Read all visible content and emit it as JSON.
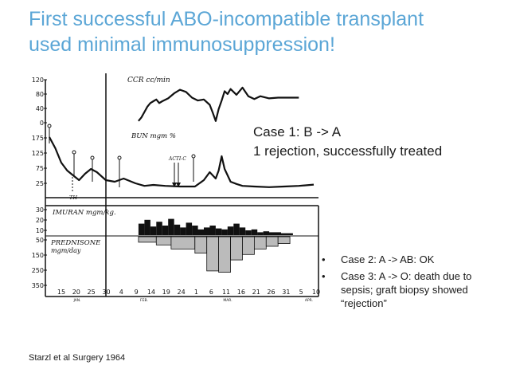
{
  "slide": {
    "title_line1": "First successful ABO-incompatible transplant",
    "title_line2": "used minimal immunosuppression!",
    "case1_line1": "Case 1: B -> A",
    "case1_line2": "1 rejection, successfully treated",
    "bullets": [
      "Case 2: A -> AB: OK",
      "Case 3: A -> O:  death due to sepsis; graft biopsy showed “rejection”"
    ],
    "citation": "Starzl et al Surgery 1964",
    "title_color": "#5ba6d6"
  },
  "chart_data": {
    "type": "line",
    "x_tick_labels": [
      "15",
      "20",
      "25",
      "30",
      "4",
      "9",
      "14",
      "19",
      "24",
      "1",
      "6",
      "11",
      "16",
      "21",
      "26",
      "31",
      "5",
      "10"
    ],
    "month_labels": [
      "JAN.",
      "FEB.",
      "MAR.",
      "APR."
    ],
    "panels": [
      {
        "name": "CCR cc/min",
        "y_tick_labels": [
          "120",
          "80",
          "40",
          "0"
        ],
        "ylim": [
          0,
          120
        ],
        "x": [
          31,
          32,
          33,
          34,
          35,
          36,
          37,
          38,
          39,
          41,
          43,
          45,
          47,
          49,
          51,
          53,
          55,
          56,
          57,
          58,
          59,
          60,
          61,
          62,
          64,
          66,
          68,
          70,
          72,
          75,
          78,
          81,
          85
        ],
        "values": [
          5,
          15,
          30,
          45,
          55,
          60,
          65,
          55,
          60,
          68,
          82,
          92,
          86,
          70,
          62,
          65,
          50,
          28,
          5,
          38,
          62,
          88,
          80,
          94,
          78,
          98,
          74,
          66,
          74,
          68,
          70,
          70,
          70
        ]
      },
      {
        "name": "BUN mgm %",
        "y_tick_labels": [
          "175",
          "125",
          "75",
          "25"
        ],
        "ylim": [
          0,
          175
        ],
        "x": [
          1,
          3,
          5,
          7,
          9,
          11,
          13,
          15,
          17,
          20,
          23,
          26,
          30,
          33,
          36,
          40,
          45,
          50,
          53,
          55,
          57,
          58,
          59,
          60,
          62,
          64,
          66,
          70,
          75,
          80,
          85,
          90
        ],
        "values": [
          175,
          140,
          95,
          70,
          55,
          40,
          60,
          75,
          65,
          40,
          35,
          45,
          30,
          22,
          25,
          22,
          20,
          20,
          40,
          65,
          45,
          70,
          115,
          75,
          35,
          28,
          22,
          20,
          18,
          20,
          22,
          26
        ]
      },
      {
        "name": "IMURAN mgm/kg",
        "y_tick_labels": [
          "30",
          "20",
          "10"
        ],
        "ylim": [
          0,
          3
        ],
        "x": [
          31,
          33,
          35,
          37,
          39,
          41,
          43,
          45,
          47,
          49,
          51,
          53,
          55,
          57,
          59,
          61,
          63,
          65,
          67,
          69,
          71,
          73,
          75,
          77,
          79,
          81
        ],
        "values": [
          1.2,
          1.6,
          0.9,
          1.4,
          1.0,
          1.7,
          1.1,
          0.8,
          1.3,
          1.0,
          0.6,
          0.8,
          1.0,
          0.7,
          0.6,
          0.9,
          1.2,
          0.8,
          0.5,
          0.6,
          0.3,
          0.4,
          0.3,
          0.3,
          0.2,
          0.2
        ]
      },
      {
        "name": "PREDNISONE mgm/day",
        "y_tick_labels": [
          "50",
          "150",
          "250",
          "350"
        ],
        "ylim": [
          0,
          350
        ],
        "x": [
          31,
          37,
          42,
          50,
          54,
          58,
          62,
          66,
          70,
          74,
          78
        ],
        "values": [
          40,
          60,
          90,
          120,
          250,
          260,
          170,
          130,
          90,
          70,
          50
        ]
      }
    ],
    "annotations": [
      "TH",
      "ACTI-C"
    ]
  }
}
